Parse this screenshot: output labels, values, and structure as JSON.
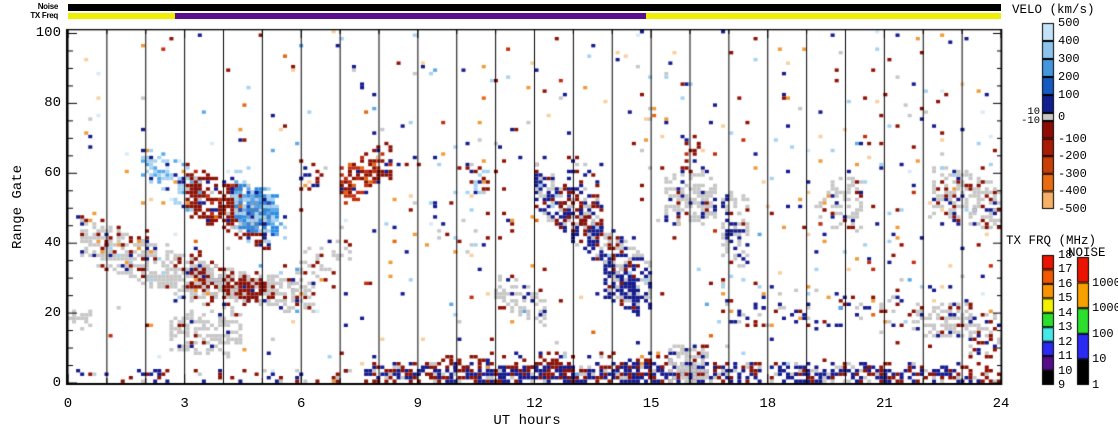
{
  "top_strips": {
    "noise_label": "Noise",
    "tx_freq_label": "TX Freq",
    "noise_segments": [
      {
        "t0": 0,
        "t1": 24,
        "color": "#000000"
      }
    ],
    "tx_freq_segments": [
      {
        "t0": 0,
        "t1": 2.75,
        "color": "#f0ee00"
      },
      {
        "t0": 2.75,
        "t1": 14.88,
        "color": "#5a0d8c"
      },
      {
        "t0": 14.88,
        "t1": 24,
        "color": "#f0ee00"
      }
    ]
  },
  "colorbars": {
    "velo": {
      "title": "VELO (km/s)",
      "labels": [
        "500",
        "400",
        "300",
        "200",
        "100",
        "0",
        "-100",
        "-200",
        "-300",
        "-400",
        "-500"
      ],
      "blue_colors": [
        "#c3e1f7",
        "#8cc4ee",
        "#4496dd",
        "#1659c2",
        "#111e90"
      ],
      "red_colors": [
        "#8d0d04",
        "#a91c04",
        "#ca3e07",
        "#e96c12",
        "#f6b166"
      ],
      "zero_band_color": "#c8c8c8",
      "zero_band_labels": [
        "10",
        "-10"
      ]
    },
    "txfrq": {
      "title": "TX FRQ (MHz)",
      "labels": [
        "18",
        "17",
        "16",
        "15",
        "14",
        "13",
        "12",
        "11",
        "10",
        "9"
      ],
      "colors": [
        "#ec1400",
        "#f25800",
        "#f79400",
        "#f4f100",
        "#2cdf2c",
        "#45e7e7",
        "#2a2af0",
        "#550d8a",
        "#000000"
      ]
    },
    "noise": {
      "title": "NOISE",
      "labels": [
        "10000",
        "1000",
        "100",
        "10",
        "1"
      ],
      "colors": [
        "#ec1400",
        "#f7a000",
        "#2cdf2c",
        "#2a2af0",
        "#000000"
      ]
    }
  },
  "chart_data": {
    "type": "heatmap",
    "title": "",
    "xlabel": "UT hours",
    "ylabel": "Range Gate",
    "xlim": [
      0,
      24
    ],
    "ylim": [
      0,
      101
    ],
    "x_major_ticks": [
      "0",
      "3",
      "6",
      "9",
      "12",
      "15",
      "18",
      "21",
      "24"
    ],
    "x_major_step": 3,
    "x_minor_step": 1,
    "y_major_ticks": [
      "0",
      "20",
      "40",
      "60",
      "80",
      "100"
    ],
    "y_major_step": 20,
    "y_minor_step": 5,
    "hour_gridlines": true,
    "seed": 42,
    "palette": {
      "navy": "#141b8e",
      "dred": "#8c1104",
      "red": "#c22d0d",
      "ored": "#e4660f",
      "orange": "#f09a38",
      "lorange": "#f7cf9e",
      "gray": "#c7c7c7",
      "lblue": "#a5d2f0",
      "mblue": "#5aa8e8",
      "bblue": "#2b8ce4",
      "dblue": "#1a50c0",
      "pblue": "#d8ebf8"
    },
    "background": {
      "density": 0.015,
      "colors": {
        "navy": 0.2,
        "dred": 0.2,
        "gray": 0.13,
        "lblue": 0.1,
        "mblue": 0.04,
        "orange": 0.08,
        "ored": 0.04,
        "red": 0.05,
        "pblue": 0.06,
        "lorange": 0.1
      }
    },
    "clusters": [
      {
        "name": "gray-band-early",
        "t0": 0.3,
        "t1": 3.6,
        "gc0": 41,
        "gc1": 27,
        "hw": 6,
        "density": 0.6,
        "colors": {
          "gray": 0.8,
          "dred": 0.08,
          "navy": 0.07,
          "orange": 0.03,
          "lblue": 0.02
        }
      },
      {
        "name": "gray-patch-0h-low",
        "t0": 0.08,
        "t1": 0.6,
        "gc0": 18,
        "gc1": 17,
        "hw": 3,
        "density": 0.5,
        "colors": {
          "gray": 0.9,
          "navy": 0.1
        }
      },
      {
        "name": "red-specks-1-2h",
        "t0": 0.7,
        "t1": 2.4,
        "gc0": 42,
        "gc1": 39,
        "hw": 5,
        "density": 0.13,
        "colors": {
          "dred": 0.7,
          "navy": 0.2,
          "orange": 0.1
        }
      },
      {
        "name": "lightblue-cluster-2h",
        "t0": 1.85,
        "t1": 3.4,
        "gc0": 63,
        "gc1": 53,
        "hw": 6,
        "density": 0.4,
        "colors": {
          "lblue": 0.48,
          "mblue": 0.22,
          "navy": 0.12,
          "pblue": 0.1,
          "red": 0.04,
          "orange": 0.04
        }
      },
      {
        "name": "gray-blob-3h-low",
        "t0": 2.6,
        "t1": 4.4,
        "gc0": 15,
        "gc1": 13,
        "hw": 6,
        "density": 0.5,
        "colors": {
          "gray": 0.85,
          "dred": 0.1,
          "navy": 0.05
        }
      },
      {
        "name": "darkred-mass-3-5h",
        "t0": 3.0,
        "t1": 5.2,
        "gc0": 55,
        "gc1": 44,
        "hw": 7,
        "density": 0.6,
        "colors": {
          "dred": 0.8,
          "navy": 0.07,
          "gray": 0.06,
          "ored": 0.04,
          "red": 0.03
        }
      },
      {
        "name": "darkred-mass-3-4h-low",
        "t0": 3.05,
        "t1": 4.3,
        "gc0": 33,
        "gc1": 24,
        "hw": 6,
        "density": 0.45,
        "colors": {
          "dred": 0.75,
          "gray": 0.15,
          "navy": 0.1
        }
      },
      {
        "name": "gray-diag-4-6h",
        "t0": 3.4,
        "t1": 6.3,
        "gc0": 29,
        "gc1": 23,
        "hw": 4.5,
        "density": 0.55,
        "colors": {
          "gray": 0.8,
          "dred": 0.14,
          "navy": 0.06
        }
      },
      {
        "name": "darkred-in-gray-4-5h",
        "t0": 3.9,
        "t1": 5.3,
        "gc0": 28,
        "gc1": 25,
        "hw": 3.5,
        "density": 0.5,
        "colors": {
          "dred": 0.85,
          "gray": 0.1,
          "navy": 0.05
        }
      },
      {
        "name": "bright-blue-blob-5h",
        "t0": 4.25,
        "t1": 5.35,
        "gc0": 50,
        "gc1": 48,
        "hw": 6,
        "density": 0.88,
        "colors": {
          "bblue": 0.45,
          "mblue": 0.2,
          "lblue": 0.2,
          "dblue": 0.1,
          "navy": 0.05
        }
      },
      {
        "name": "blue-blob-fringe",
        "t0": 4.05,
        "t1": 5.55,
        "gc0": 54,
        "gc1": 46,
        "hw": 8,
        "density": 0.16,
        "colors": {
          "lblue": 0.5,
          "mblue": 0.3,
          "navy": 0.2
        }
      },
      {
        "name": "gray-red-rise-6-7h",
        "t0": 5.5,
        "t1": 7.3,
        "gc0": 27,
        "gc1": 40,
        "hw": 6,
        "density": 0.28,
        "colors": {
          "gray": 0.6,
          "dred": 0.25,
          "navy": 0.1,
          "orange": 0.05
        }
      },
      {
        "name": "red-specks-6h-mid",
        "t0": 5.9,
        "t1": 6.5,
        "gc0": 58,
        "gc1": 58,
        "hw": 5,
        "density": 0.28,
        "colors": {
          "dred": 0.6,
          "navy": 0.25,
          "orange": 0.15
        }
      },
      {
        "name": "red-streak-7-8h",
        "t0": 6.95,
        "t1": 8.25,
        "gc0": 56,
        "gc1": 63,
        "hw": 5.5,
        "density": 0.66,
        "colors": {
          "dred": 0.5,
          "red": 0.28,
          "ored": 0.14,
          "navy": 0.08
        }
      },
      {
        "name": "bottom-band-sparse-early",
        "t0": 0.0,
        "t1": 7.6,
        "gc0": 1,
        "gc1": 1,
        "hw": 2.2,
        "density": 0.17,
        "colors": {
          "navy": 0.6,
          "dred": 0.25,
          "gray": 0.15
        }
      },
      {
        "name": "bottom-band-dense",
        "t0": 7.6,
        "t1": 16.3,
        "gc0": 2,
        "gc1": 2,
        "hw": 2.6,
        "density": 0.74,
        "colors": {
          "navy": 0.54,
          "dred": 0.32,
          "gray": 0.14
        }
      },
      {
        "name": "bottom-band-late",
        "t0": 16.3,
        "t1": 24,
        "gc0": 2,
        "gc1": 2,
        "hw": 2.6,
        "density": 0.55,
        "colors": {
          "navy": 0.5,
          "dred": 0.26,
          "gray": 0.24
        }
      },
      {
        "name": "bottom-red-row",
        "t0": 9.5,
        "t1": 15.6,
        "gc0": 6,
        "gc1": 6,
        "hw": 2,
        "density": 0.28,
        "colors": {
          "dred": 0.62,
          "navy": 0.28,
          "orange": 0.1
        }
      },
      {
        "name": "sparse-mid-9-12h",
        "t0": 8.3,
        "t1": 11.9,
        "gc0": 50,
        "gc1": 50,
        "hw": 14,
        "density": 0.045,
        "colors": {
          "navy": 0.28,
          "dred": 0.28,
          "gray": 0.14,
          "lblue": 0.15,
          "orange": 0.1,
          "lorange": 0.05
        }
      },
      {
        "name": "lightblue-specks-10-11h",
        "t0": 10.3,
        "t1": 11.0,
        "gc0": 57,
        "gc1": 57,
        "hw": 4,
        "density": 0.2,
        "colors": {
          "lblue": 0.45,
          "navy": 0.3,
          "dred": 0.25
        }
      },
      {
        "name": "gray-blob-11-12h",
        "t0": 10.9,
        "t1": 12.3,
        "gc0": 26,
        "gc1": 20,
        "hw": 5,
        "density": 0.55,
        "colors": {
          "gray": 0.85,
          "navy": 0.1,
          "dred": 0.05
        }
      },
      {
        "name": "navy-gray-diag-12-15h",
        "t0": 11.9,
        "t1": 15.0,
        "gc0": 56,
        "gc1": 27,
        "hw": 6.5,
        "density": 0.55,
        "colors": {
          "navy": 0.44,
          "gray": 0.37,
          "dred": 0.13,
          "lblue": 0.06
        }
      },
      {
        "name": "navy-dense-14h",
        "t0": 13.7,
        "t1": 14.7,
        "gc0": 30,
        "gc1": 23,
        "hw": 5,
        "density": 0.8,
        "colors": {
          "navy": 0.75,
          "gray": 0.2,
          "dred": 0.05
        }
      },
      {
        "name": "red-navy-13h",
        "t0": 12.5,
        "t1": 13.7,
        "gc0": 50,
        "gc1": 48,
        "hw": 6,
        "density": 0.33,
        "colors": {
          "dred": 0.6,
          "navy": 0.3,
          "gray": 0.1
        }
      },
      {
        "name": "navy-red-clump-13h-top",
        "t0": 12.8,
        "t1": 13.9,
        "gc0": 58,
        "gc1": 58,
        "hw": 6,
        "density": 0.2,
        "colors": {
          "navy": 0.5,
          "dred": 0.35,
          "gray": 0.15
        }
      },
      {
        "name": "gray-blob-15-16h",
        "t0": 15.3,
        "t1": 16.65,
        "gc0": 52,
        "gc1": 52,
        "hw": 7,
        "density": 0.5,
        "colors": {
          "gray": 0.78,
          "navy": 0.16,
          "dred": 0.06
        }
      },
      {
        "name": "gray-blob-16h-bottom",
        "t0": 15.4,
        "t1": 16.4,
        "gc0": 5,
        "gc1": 5,
        "hw": 5,
        "density": 0.6,
        "colors": {
          "gray": 0.85,
          "navy": 0.1,
          "dred": 0.05
        }
      },
      {
        "name": "red-specks-16h-top",
        "t0": 15.7,
        "t1": 16.3,
        "gc0": 66,
        "gc1": 62,
        "hw": 6,
        "density": 0.2,
        "colors": {
          "dred": 0.7,
          "navy": 0.3
        }
      },
      {
        "name": "gray-navy-blob-17h",
        "t0": 16.7,
        "t1": 17.5,
        "gc0": 46,
        "gc1": 42,
        "hw": 10,
        "density": 0.5,
        "colors": {
          "gray": 0.56,
          "navy": 0.33,
          "dred": 0.11
        }
      },
      {
        "name": "speckle-band-17-21h",
        "t0": 16.6,
        "t1": 21.7,
        "gc0": 22,
        "gc1": 20,
        "hw": 6,
        "density": 0.16,
        "colors": {
          "navy": 0.33,
          "dred": 0.27,
          "gray": 0.3,
          "orange": 0.05,
          "lblue": 0.05
        }
      },
      {
        "name": "gray-blob-19-20h",
        "t0": 19.3,
        "t1": 20.45,
        "gc0": 52,
        "gc1": 50,
        "hw": 7,
        "density": 0.42,
        "colors": {
          "gray": 0.75,
          "navy": 0.1,
          "dred": 0.1,
          "orange": 0.05
        }
      },
      {
        "name": "gray-band-22-24h",
        "t0": 22.2,
        "t1": 24,
        "gc0": 55,
        "gc1": 50,
        "hw": 7,
        "density": 0.55,
        "colors": {
          "gray": 0.7,
          "dred": 0.15,
          "navy": 0.15
        }
      },
      {
        "name": "gray-blob-22h-low",
        "t0": 21.6,
        "t1": 23.2,
        "gc0": 18,
        "gc1": 18,
        "hw": 5,
        "density": 0.5,
        "colors": {
          "gray": 0.8,
          "navy": 0.1,
          "dred": 0.1
        }
      },
      {
        "name": "gray-red-24h-low",
        "t0": 23.1,
        "t1": 24,
        "gc0": 13,
        "gc1": 13,
        "hw": 6,
        "density": 0.5,
        "colors": {
          "gray": 0.55,
          "dred": 0.27,
          "navy": 0.18
        }
      },
      {
        "name": "sparse-upper-mid",
        "t0": 7.5,
        "t1": 16,
        "gc0": 80,
        "gc1": 80,
        "hw": 21,
        "density": 0.012,
        "colors": {
          "navy": 0.2,
          "dred": 0.2,
          "lblue": 0.12,
          "lorange": 0.15,
          "orange": 0.1,
          "red": 0.06,
          "gray": 0.12,
          "pblue": 0.05
        }
      },
      {
        "name": "sparse-right",
        "t0": 16,
        "t1": 24,
        "gc0": 60,
        "gc1": 60,
        "hw": 40,
        "density": 0.02,
        "colors": {
          "navy": 0.22,
          "dred": 0.22,
          "lblue": 0.1,
          "lorange": 0.12,
          "orange": 0.1,
          "red": 0.06,
          "gray": 0.13,
          "mblue": 0.05
        }
      }
    ]
  }
}
